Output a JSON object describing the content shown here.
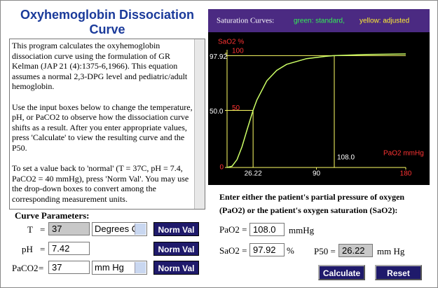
{
  "header": {
    "title": "Oxyhemoglobin Dissociation Curve"
  },
  "description": {
    "paragraphs": [
      "This program calculates the oxyhemoglobin dissociation curve using the formulation of GR Kelman (JAP 21 (4):1375-6,1966). This equation assumes a normal 2,3-DPG level and pediatric/adult hemoglobin.",
      "Use the input boxes below to change the temperature, pH, or PaCO2 to observe how the dissociation curve shifts as a result. After you enter appropriate values, press 'Calculate' to view the resulting curve and the P50.",
      "To set a value back to 'normal' (T = 37C, pH = 7.4, PaCO2 = 40 mmHg), press 'Norm Val'. You may use the drop-down boxes to convert among the corresponding measurement units."
    ]
  },
  "chart": {
    "title": "Saturation Curves:",
    "legend": [
      "green: standard,",
      "yellow: adjusted"
    ],
    "y_axis_label": "SaO2 %",
    "x_axis_label": "PaO2 mmHg",
    "xlim": [
      0,
      180
    ],
    "ylim": [
      0,
      100
    ],
    "xticks": [
      90,
      180
    ],
    "yticks": [
      0,
      50,
      100
    ],
    "curve": {
      "color": "#ccff66",
      "x": [
        0,
        5,
        10,
        15,
        20,
        26.22,
        30,
        40,
        50,
        60,
        80,
        100,
        108,
        140,
        180
      ],
      "y": [
        0,
        1.1,
        6.9,
        18.1,
        32.5,
        50,
        59,
        75.8,
        85,
        90.3,
        95.3,
        97.4,
        97.92,
        98.9,
        99.4
      ]
    },
    "p50": {
      "x": 26.22,
      "y": {
        "value": 50,
        "label": "50.0"
      }
    },
    "point": {
      "x": {
        "value": 108,
        "label": "108.0"
      },
      "y": 97.92
    }
  },
  "form": {
    "heading": "Curve Parameters:",
    "rows": [
      {
        "label": "T",
        "eq": "=",
        "value": "37",
        "unit": "Degrees C",
        "button": "Norm Val"
      },
      {
        "label": "pH",
        "eq": "=",
        "value": "7.42",
        "button": "Norm Val"
      },
      {
        "label": "PaCO2",
        "eq": "=",
        "value": "37",
        "unit": "mm Hg",
        "button": "Norm Val"
      }
    ]
  },
  "oxygen": {
    "prompt": "Enter either the patient's partial pressure of oxygen (PaO2) or the patient's oxygen saturation (SaO2):",
    "pao2_label": "PaO2 =",
    "pao2": "108.0",
    "pao2_unit": "mmHg",
    "sao2_label": "SaO2 =",
    "sao2": "97.92",
    "sao2_unit": "%",
    "p50_label": "P50 =",
    "p50": "26.22",
    "p50_unit": "mm Hg",
    "calculate": "Calculate",
    "reset": "Reset"
  }
}
